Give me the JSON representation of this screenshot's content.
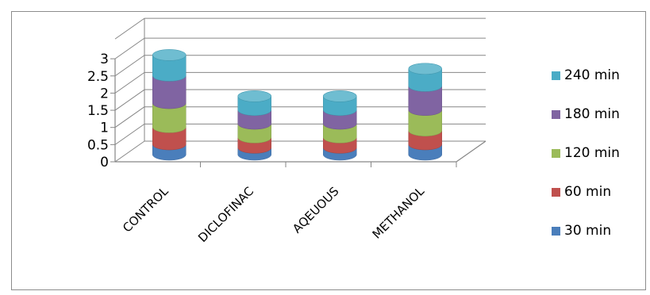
{
  "chart_data": {
    "type": "bar",
    "subtype": "3d-stacked-cylinder",
    "categories": [
      "CONTROL",
      "DICLOFINAC",
      "AQEUOUS",
      "METHANOL"
    ],
    "series": [
      {
        "name": "30 min",
        "color": "#4a7ebb",
        "values": [
          0.3,
          0.2,
          0.2,
          0.3
        ]
      },
      {
        "name": "60 min",
        "color": "#c0504d",
        "values": [
          0.5,
          0.3,
          0.3,
          0.4
        ]
      },
      {
        "name": "120 min",
        "color": "#9bbb59",
        "values": [
          0.7,
          0.4,
          0.4,
          0.6
        ]
      },
      {
        "name": "180 min",
        "color": "#8064a2",
        "values": [
          0.8,
          0.4,
          0.4,
          0.7
        ]
      },
      {
        "name": "240 min",
        "color": "#4bacc6",
        "values": [
          0.6,
          0.4,
          0.4,
          0.5
        ]
      }
    ],
    "y_ticks": [
      "0",
      "0.5",
      "1",
      "1.5",
      "2",
      "2.5",
      "3"
    ],
    "ylim": [
      0,
      3
    ],
    "grid": true,
    "legend_position": "right",
    "legend_order": [
      "240 min",
      "180 min",
      "120 min",
      "60 min",
      "30 min"
    ],
    "title": "",
    "xlabel": "",
    "ylabel": ""
  }
}
